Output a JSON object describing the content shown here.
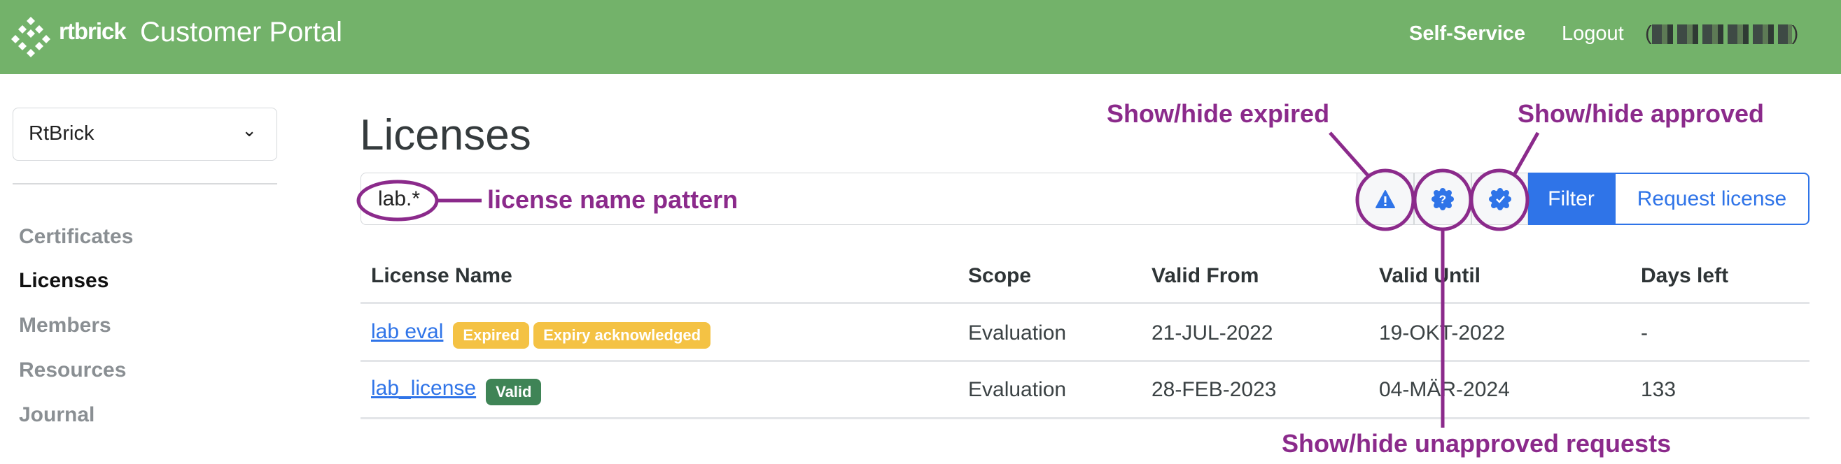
{
  "header": {
    "brand": "rtbrick",
    "title": "Customer Portal",
    "self_service": "Self-Service",
    "logout": "Logout",
    "user_open": "(",
    "user_close": ")",
    "color": "#73b26a"
  },
  "sidebar": {
    "org_select": "RtBrick",
    "items": [
      {
        "label": "Certificates",
        "active": false
      },
      {
        "label": "Licenses",
        "active": true
      },
      {
        "label": "Members",
        "active": false
      },
      {
        "label": "Resources",
        "active": false
      },
      {
        "label": "Journal",
        "active": false
      }
    ]
  },
  "main": {
    "title": "Licenses",
    "filter_input": "lab.*",
    "icons": [
      "warning-triangle-icon",
      "question-badge-icon",
      "check-badge-icon"
    ],
    "filter_label": "Filter",
    "request_label": "Request license",
    "table": {
      "headers": [
        "License Name",
        "Scope",
        "Valid From",
        "Valid Until",
        "Days left"
      ],
      "rows": [
        {
          "name": "lab eval",
          "badges": [
            "Expired",
            "Expiry acknowledged"
          ],
          "scope": "Evaluation",
          "from": "21-JUL-2022",
          "until": "19-OKT-2022",
          "days": "-"
        },
        {
          "name": "lab_license",
          "badges": [
            "Valid"
          ],
          "scope": "Evaluation",
          "from": "28-FEB-2023",
          "until": "04-MÄR-2024",
          "days": "133"
        }
      ]
    }
  },
  "annotations": {
    "pattern": "license name pattern",
    "expired": "Show/hide expired",
    "approved": "Show/hide approved",
    "unapproved": "Show/hide unapproved requests",
    "color": "#8b2a8b"
  },
  "colors": {
    "primary": "#2f74e8",
    "warning": "#f4c244",
    "success": "#3f8456"
  }
}
